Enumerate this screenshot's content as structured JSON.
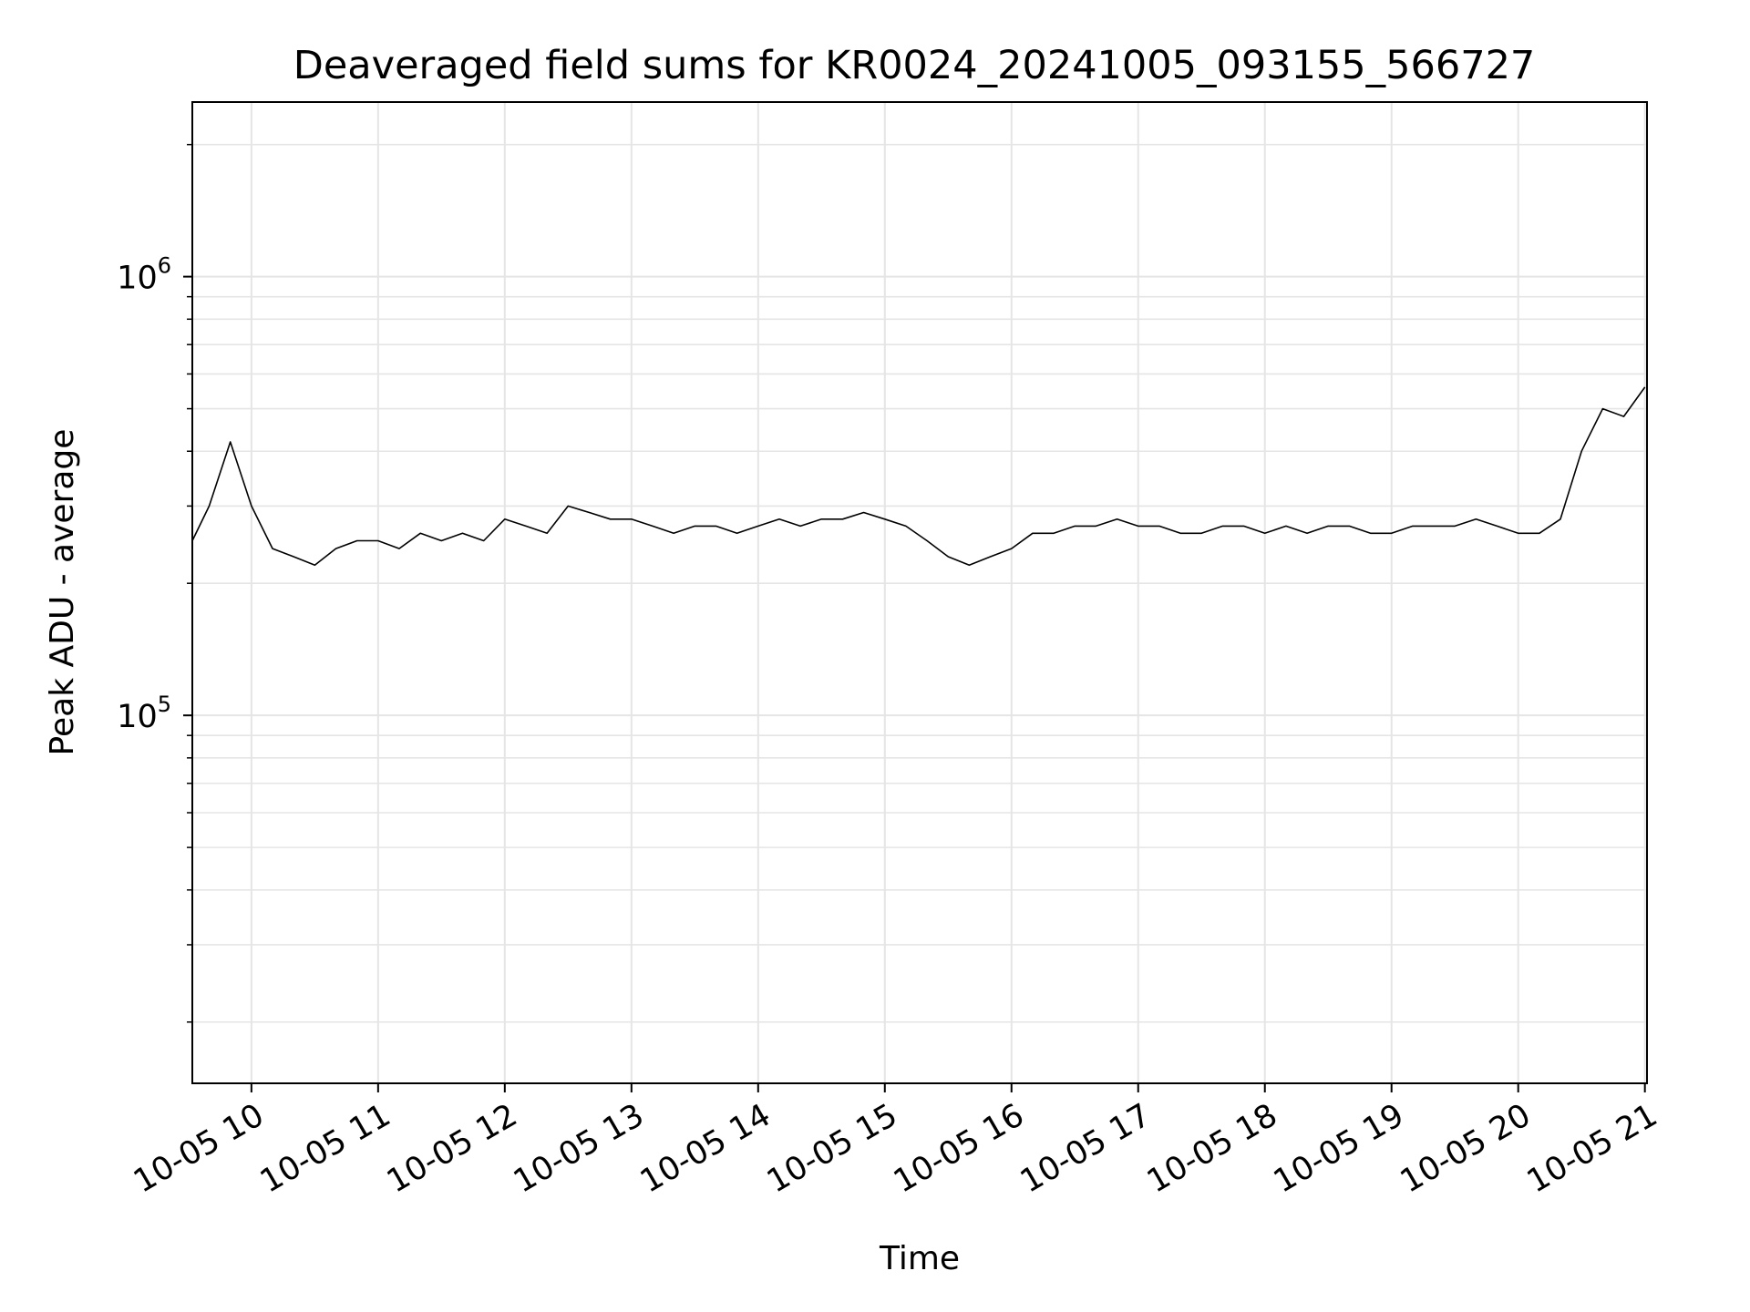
{
  "chart_data": {
    "type": "line",
    "title": "Deaveraged field sums for KR0024_20241005_093155_566727",
    "xlabel": "Time",
    "ylabel": "Peak ADU - average",
    "yscale": "log",
    "grid": true,
    "line_color": "#000000",
    "grid_color": "#e5e5e5",
    "x_tick_rotation_deg": 30,
    "xlim": [
      "2024-10-05 09:32",
      "2024-10-05 21:01"
    ],
    "ylim": [
      14500,
      2500000
    ],
    "x_ticks": [
      {
        "value": "2024-10-05 10:00",
        "label": "10-05 10"
      },
      {
        "value": "2024-10-05 11:00",
        "label": "10-05 11"
      },
      {
        "value": "2024-10-05 12:00",
        "label": "10-05 12"
      },
      {
        "value": "2024-10-05 13:00",
        "label": "10-05 13"
      },
      {
        "value": "2024-10-05 14:00",
        "label": "10-05 14"
      },
      {
        "value": "2024-10-05 15:00",
        "label": "10-05 15"
      },
      {
        "value": "2024-10-05 16:00",
        "label": "10-05 16"
      },
      {
        "value": "2024-10-05 17:00",
        "label": "10-05 17"
      },
      {
        "value": "2024-10-05 18:00",
        "label": "10-05 18"
      },
      {
        "value": "2024-10-05 19:00",
        "label": "10-05 19"
      },
      {
        "value": "2024-10-05 20:00",
        "label": "10-05 20"
      },
      {
        "value": "2024-10-05 21:00",
        "label": "10-05 21"
      }
    ],
    "y_ticks": [
      {
        "value": 100000,
        "base": "10",
        "exp": "5"
      },
      {
        "value": 1000000,
        "base": "10",
        "exp": "6"
      }
    ],
    "x": [
      "2024-10-05 09:32",
      "2024-10-05 09:40",
      "2024-10-05 09:50",
      "2024-10-05 10:00",
      "2024-10-05 10:10",
      "2024-10-05 10:20",
      "2024-10-05 10:30",
      "2024-10-05 10:40",
      "2024-10-05 10:50",
      "2024-10-05 11:00",
      "2024-10-05 11:10",
      "2024-10-05 11:20",
      "2024-10-05 11:30",
      "2024-10-05 11:40",
      "2024-10-05 11:50",
      "2024-10-05 12:00",
      "2024-10-05 12:10",
      "2024-10-05 12:20",
      "2024-10-05 12:30",
      "2024-10-05 12:40",
      "2024-10-05 12:50",
      "2024-10-05 13:00",
      "2024-10-05 13:10",
      "2024-10-05 13:20",
      "2024-10-05 13:30",
      "2024-10-05 13:40",
      "2024-10-05 13:50",
      "2024-10-05 14:00",
      "2024-10-05 14:10",
      "2024-10-05 14:20",
      "2024-10-05 14:30",
      "2024-10-05 14:40",
      "2024-10-05 14:50",
      "2024-10-05 15:00",
      "2024-10-05 15:10",
      "2024-10-05 15:20",
      "2024-10-05 15:30",
      "2024-10-05 15:40",
      "2024-10-05 15:50",
      "2024-10-05 16:00",
      "2024-10-05 16:10",
      "2024-10-05 16:20",
      "2024-10-05 16:30",
      "2024-10-05 16:40",
      "2024-10-05 16:50",
      "2024-10-05 17:00",
      "2024-10-05 17:10",
      "2024-10-05 17:20",
      "2024-10-05 17:30",
      "2024-10-05 17:40",
      "2024-10-05 17:50",
      "2024-10-05 18:00",
      "2024-10-05 18:10",
      "2024-10-05 18:20",
      "2024-10-05 18:30",
      "2024-10-05 18:40",
      "2024-10-05 18:50",
      "2024-10-05 19:00",
      "2024-10-05 19:10",
      "2024-10-05 19:20",
      "2024-10-05 19:30",
      "2024-10-05 19:40",
      "2024-10-05 19:50",
      "2024-10-05 20:00",
      "2024-10-05 20:10",
      "2024-10-05 20:20",
      "2024-10-05 20:30",
      "2024-10-05 20:40",
      "2024-10-05 20:50",
      "2024-10-05 21:00"
    ],
    "series": [
      {
        "values": [
          250000,
          300000,
          420000,
          300000,
          240000,
          230000,
          220000,
          240000,
          250000,
          250000,
          240000,
          260000,
          250000,
          260000,
          250000,
          280000,
          270000,
          260000,
          300000,
          290000,
          280000,
          280000,
          270000,
          260000,
          270000,
          270000,
          260000,
          270000,
          280000,
          270000,
          280000,
          280000,
          290000,
          280000,
          270000,
          250000,
          230000,
          220000,
          230000,
          240000,
          260000,
          260000,
          270000,
          270000,
          280000,
          270000,
          270000,
          260000,
          260000,
          270000,
          270000,
          260000,
          270000,
          260000,
          270000,
          270000,
          260000,
          260000,
          270000,
          270000,
          270000,
          280000,
          270000,
          260000,
          260000,
          280000,
          400000,
          500000,
          480000,
          560000
        ]
      }
    ]
  }
}
